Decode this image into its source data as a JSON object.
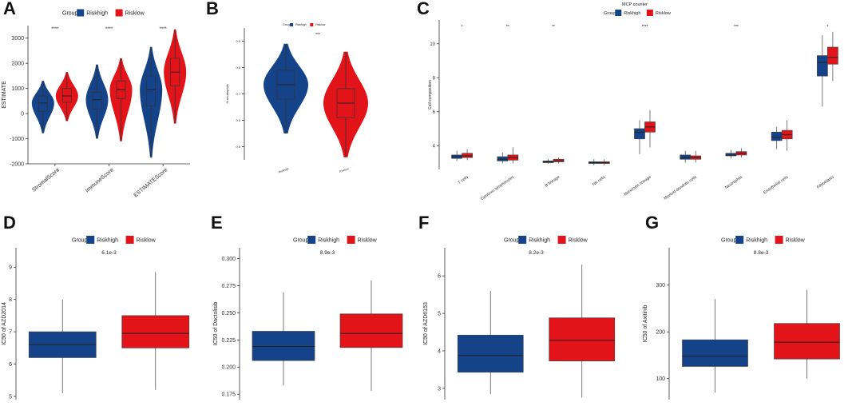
{
  "colors": {
    "riskhigh": "#15438a",
    "risklow": "#e3131a",
    "line": "#222222",
    "axis": "#333333"
  },
  "legend": {
    "title": "Group",
    "items": [
      "Riskhigh",
      "Risklow"
    ]
  },
  "chart_data": [
    {
      "panel": "A",
      "type": "violin",
      "ylabel": "ESTIMATE",
      "ylim": [
        -2000,
        3500
      ],
      "yticks": [
        -2000,
        -1000,
        0,
        1000,
        2000,
        3000
      ],
      "categories": [
        "StromalScore",
        "ImmuneScore",
        "ESTIMATEScore"
      ],
      "significance": [
        "****",
        "****",
        "****"
      ],
      "series": [
        {
          "name": "Riskhigh",
          "stats": [
            {
              "min": -780,
              "q1": 80,
              "median": 420,
              "q3": 700,
              "max": 1300
            },
            {
              "min": -1000,
              "q1": 180,
              "median": 550,
              "q3": 850,
              "max": 1950
            },
            {
              "min": -1750,
              "q1": 300,
              "median": 950,
              "q3": 1500,
              "max": 2650
            }
          ]
        },
        {
          "name": "Risklow",
          "stats": [
            {
              "min": -300,
              "q1": 450,
              "median": 700,
              "q3": 1000,
              "max": 1650
            },
            {
              "min": -1100,
              "q1": 600,
              "median": 950,
              "q3": 1300,
              "max": 2200
            },
            {
              "min": -400,
              "q1": 1100,
              "median": 1650,
              "q3": 2200,
              "max": 3350
            }
          ]
        }
      ]
    },
    {
      "panel": "B",
      "type": "violin",
      "ylabel": "% neutrophils",
      "ylim": [
        0.45,
        0.95
      ],
      "yticks": [
        0.5,
        0.6,
        0.7,
        0.8,
        0.9
      ],
      "categories": [
        "Riskhigh",
        "Risklow"
      ],
      "significance": [
        "***"
      ],
      "series": [
        {
          "name": "Riskhigh",
          "stats": [
            {
              "min": 0.55,
              "q1": 0.68,
              "median": 0.735,
              "q3": 0.79,
              "max": 0.89
            }
          ]
        },
        {
          "name": "Risklow",
          "stats": [
            {
              "min": 0.46,
              "q1": 0.61,
              "median": 0.665,
              "q3": 0.72,
              "max": 0.86
            }
          ]
        }
      ]
    },
    {
      "panel": "C",
      "type": "boxplot",
      "title": "MCP counter",
      "ylabel": "Cell composition",
      "ylim": [
        2.6,
        11.4
      ],
      "yticks": [
        4,
        6,
        8,
        10
      ],
      "categories": [
        "T cells",
        "Cytotoxic lymphocytes",
        "B lineage",
        "NK cells",
        "Monocytic lineage",
        "Myeloid dendritic cells",
        "Neutrophils",
        "Endothelial cells",
        "Fibroblasts"
      ],
      "significance": [
        "*",
        "**",
        "**",
        "",
        "****",
        "",
        "***",
        "",
        "*"
      ],
      "series": [
        {
          "name": "Riskhigh",
          "stats": [
            {
              "min": 3.1,
              "q1": 3.25,
              "median": 3.35,
              "q3": 3.45,
              "max": 3.7
            },
            {
              "min": 2.95,
              "q1": 3.1,
              "median": 3.2,
              "q3": 3.35,
              "max": 3.6
            },
            {
              "min": 2.95,
              "q1": 3.0,
              "median": 3.05,
              "q3": 3.1,
              "max": 3.2
            },
            {
              "min": 2.85,
              "q1": 2.95,
              "median": 3.0,
              "q3": 3.05,
              "max": 3.2
            },
            {
              "min": 3.5,
              "q1": 4.4,
              "median": 4.8,
              "q3": 5.0,
              "max": 5.5
            },
            {
              "min": 3.0,
              "q1": 3.2,
              "median": 3.3,
              "q3": 3.45,
              "max": 3.7
            },
            {
              "min": 3.25,
              "q1": 3.4,
              "median": 3.45,
              "q3": 3.55,
              "max": 3.75
            },
            {
              "min": 3.8,
              "q1": 4.3,
              "median": 4.5,
              "q3": 4.8,
              "max": 5.1
            },
            {
              "min": 6.3,
              "q1": 8.1,
              "median": 8.9,
              "q3": 9.3,
              "max": 10.5
            }
          ]
        },
        {
          "name": "Risklow",
          "stats": [
            {
              "min": 3.15,
              "q1": 3.3,
              "median": 3.4,
              "q3": 3.55,
              "max": 3.8
            },
            {
              "min": 2.95,
              "q1": 3.15,
              "median": 3.3,
              "q3": 3.45,
              "max": 3.9
            },
            {
              "min": 2.95,
              "q1": 3.05,
              "median": 3.1,
              "q3": 3.2,
              "max": 3.3
            },
            {
              "min": 2.85,
              "q1": 2.95,
              "median": 3.0,
              "q3": 3.05,
              "max": 3.2
            },
            {
              "min": 3.9,
              "q1": 4.8,
              "median": 5.1,
              "q3": 5.4,
              "max": 6.1
            },
            {
              "min": 3.0,
              "q1": 3.2,
              "median": 3.3,
              "q3": 3.4,
              "max": 3.7
            },
            {
              "min": 3.3,
              "q1": 3.45,
              "median": 3.55,
              "q3": 3.65,
              "max": 3.85
            },
            {
              "min": 3.7,
              "q1": 4.4,
              "median": 4.65,
              "q3": 4.9,
              "max": 5.5
            },
            {
              "min": 7.8,
              "q1": 8.8,
              "median": 9.2,
              "q3": 9.8,
              "max": 10.7
            }
          ]
        }
      ]
    },
    {
      "panel": "D",
      "type": "boxplot",
      "pvalue": "6.1e-3",
      "ylabel": "IC50 of AZD2014",
      "ylim": [
        4.9,
        9.6
      ],
      "yticks": [
        5,
        6,
        7,
        8,
        9
      ],
      "categories": [
        "Riskhigh",
        "Risklow"
      ],
      "series": [
        {
          "name": "Riskhigh",
          "stats": [
            {
              "min": 5.1,
              "q1": 6.2,
              "median": 6.6,
              "q3": 7.0,
              "max": 8.0
            }
          ]
        },
        {
          "name": "Risklow",
          "stats": [
            {
              "min": 5.2,
              "q1": 6.5,
              "median": 6.95,
              "q3": 7.5,
              "max": 8.85
            }
          ]
        }
      ]
    },
    {
      "panel": "E",
      "type": "boxplot",
      "pvalue": "8.9e-3",
      "ylabel": "IC50 of Dactolisib",
      "ylim": [
        0.17,
        0.31
      ],
      "yticks": [
        0.175,
        0.2,
        0.225,
        0.25,
        0.275,
        0.3
      ],
      "ytick_labels": [
        "0.175",
        "0.200",
        "0.225",
        "0.250",
        "0.275",
        "0.300"
      ],
      "categories": [
        "Riskhigh",
        "Risklow"
      ],
      "series": [
        {
          "name": "Riskhigh",
          "stats": [
            {
              "min": 0.183,
              "q1": 0.206,
              "median": 0.219,
              "q3": 0.233,
              "max": 0.269
            }
          ]
        },
        {
          "name": "Risklow",
          "stats": [
            {
              "min": 0.178,
              "q1": 0.218,
              "median": 0.231,
              "q3": 0.249,
              "max": 0.28
            }
          ]
        }
      ]
    },
    {
      "panel": "F",
      "type": "boxplot",
      "pvalue": "8.2e-3",
      "ylabel": "IC50 of AZD6153",
      "ylim": [
        2.7,
        6.75
      ],
      "yticks": [
        3,
        4,
        5,
        6
      ],
      "categories": [
        "Riskhigh",
        "Risklow"
      ],
      "series": [
        {
          "name": "Riskhigh",
          "stats": [
            {
              "min": 2.85,
              "q1": 3.43,
              "median": 3.88,
              "q3": 4.42,
              "max": 5.6
            }
          ]
        },
        {
          "name": "Risklow",
          "stats": [
            {
              "min": 2.75,
              "q1": 3.73,
              "median": 4.28,
              "q3": 4.88,
              "max": 6.3
            }
          ]
        }
      ]
    },
    {
      "panel": "G",
      "type": "boxplot",
      "pvalue": "8.8e-3",
      "ylabel": "IC50 of Axitinib",
      "ylim": [
        55,
        380
      ],
      "yticks": [
        100,
        200,
        300
      ],
      "categories": [
        "Riskhigh",
        "Risklow"
      ],
      "series": [
        {
          "name": "Riskhigh",
          "stats": [
            {
              "min": 70,
              "q1": 126,
              "median": 148,
              "q3": 183,
              "max": 270
            }
          ]
        },
        {
          "name": "Risklow",
          "stats": [
            {
              "min": 100,
              "q1": 142,
              "median": 178,
              "q3": 218,
              "max": 290
            }
          ]
        }
      ]
    }
  ]
}
